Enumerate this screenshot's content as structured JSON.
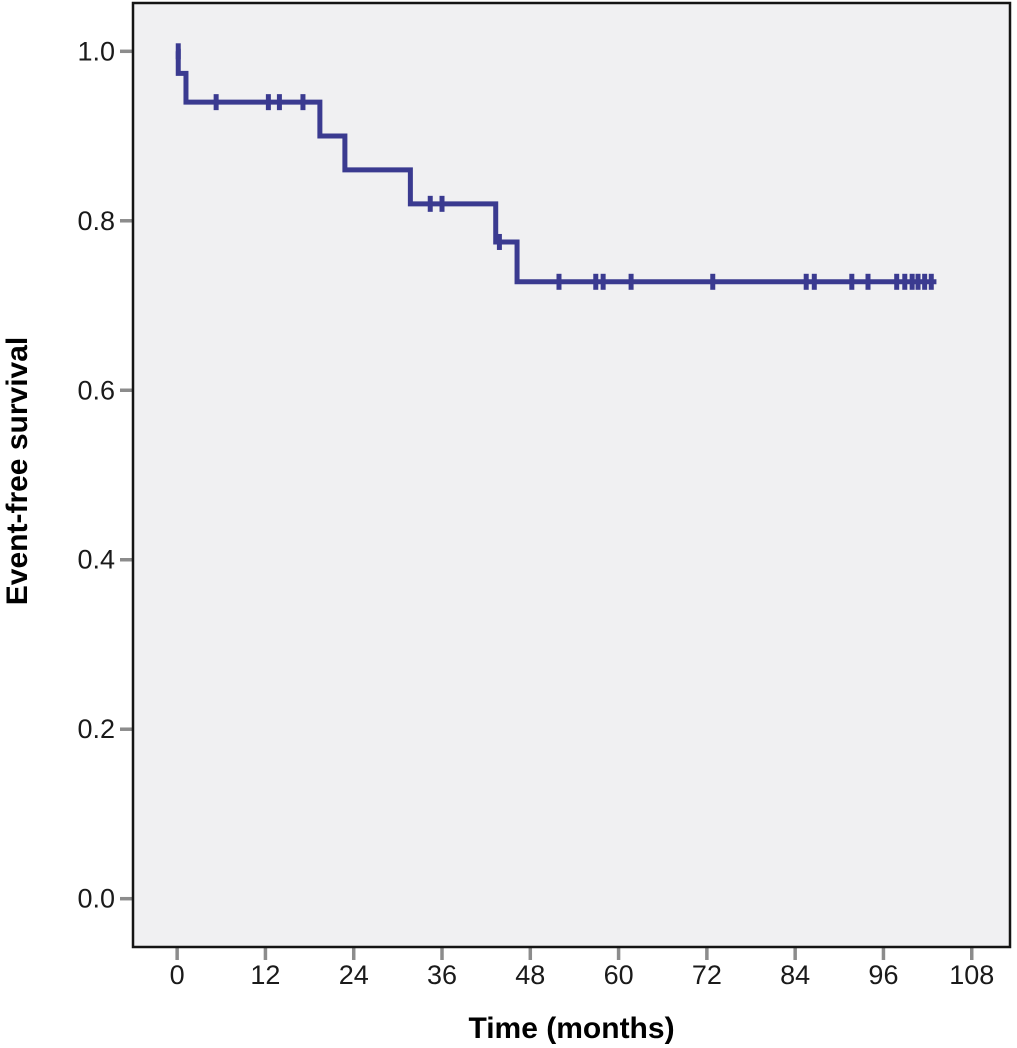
{
  "chart_data": {
    "type": "line",
    "subtype": "kaplan-meier-step-function",
    "title": "",
    "xlabel": "Time (months)",
    "ylabel": "Event-free survival",
    "x_ticks": [
      0,
      12,
      24,
      36,
      48,
      60,
      72,
      84,
      96,
      108
    ],
    "x_tick_labels": [
      "0",
      "12",
      "24",
      "36",
      "48",
      "60",
      "72",
      "84",
      "96",
      "108"
    ],
    "y_ticks": [
      0.0,
      0.2,
      0.4,
      0.6,
      0.8,
      1.0
    ],
    "y_tick_labels": [
      "0.0",
      "0.2",
      "0.4",
      "0.6",
      "0.8",
      "1.0"
    ],
    "xlim": [
      -6,
      113.2
    ],
    "ylim": [
      -0.057,
      1.057
    ],
    "grid": false,
    "legend": false,
    "series": [
      {
        "name": "Event-free survival",
        "color": "#3A3A90",
        "steps": [
          {
            "t": 0,
            "s": 1.0
          },
          {
            "t": 0.15,
            "s": 0.974
          },
          {
            "t": 1.2,
            "s": 0.94
          },
          {
            "t": 19.4,
            "s": 0.9
          },
          {
            "t": 22.8,
            "s": 0.86
          },
          {
            "t": 31.7,
            "s": 0.82
          },
          {
            "t": 43.3,
            "s": 0.775
          },
          {
            "t": 46.2,
            "s": 0.728
          }
        ],
        "end_time": 103.2,
        "censor_marks": [
          {
            "t": 0.15,
            "s": 1.0
          },
          {
            "t": 5.3,
            "s": 0.94
          },
          {
            "t": 12.4,
            "s": 0.94
          },
          {
            "t": 13.9,
            "s": 0.94
          },
          {
            "t": 17.1,
            "s": 0.94
          },
          {
            "t": 34.4,
            "s": 0.82
          },
          {
            "t": 36.0,
            "s": 0.82
          },
          {
            "t": 43.8,
            "s": 0.775
          },
          {
            "t": 51.9,
            "s": 0.728
          },
          {
            "t": 56.9,
            "s": 0.728
          },
          {
            "t": 57.9,
            "s": 0.728
          },
          {
            "t": 61.7,
            "s": 0.728
          },
          {
            "t": 72.8,
            "s": 0.728
          },
          {
            "t": 85.5,
            "s": 0.728
          },
          {
            "t": 86.6,
            "s": 0.728
          },
          {
            "t": 91.7,
            "s": 0.728
          },
          {
            "t": 93.9,
            "s": 0.728
          },
          {
            "t": 97.8,
            "s": 0.728
          },
          {
            "t": 98.9,
            "s": 0.728
          },
          {
            "t": 99.9,
            "s": 0.728
          },
          {
            "t": 100.7,
            "s": 0.728
          },
          {
            "t": 101.6,
            "s": 0.728
          },
          {
            "t": 102.5,
            "s": 0.728
          }
        ]
      }
    ],
    "colors": {
      "curve": "#3A3A90",
      "plot_background": "#F0F0F2",
      "frame": "#141414",
      "tick": "#8C8C8C",
      "tick_label": "#1A1A1A",
      "axis_title": "#000000",
      "page_background": "#FFFFFF"
    }
  }
}
